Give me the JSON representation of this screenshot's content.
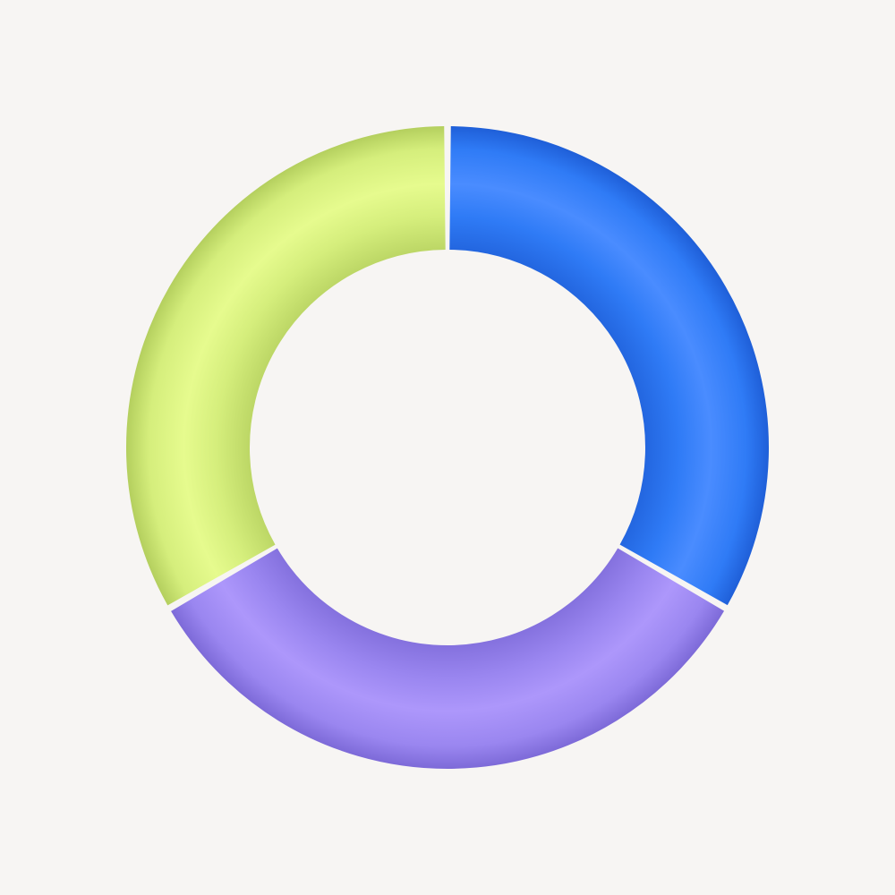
{
  "background": "#f7f5f3",
  "ring": {
    "segments": [
      {
        "id": "blue",
        "share": 0.3333,
        "color": "#2f7bf6",
        "highlight": "#4a8cff",
        "shadow": "#1f5fd8"
      },
      {
        "id": "purple",
        "share": 0.3333,
        "color": "#9a86f0",
        "highlight": "#ad97fb",
        "shadow": "#7d6ad8"
      },
      {
        "id": "green",
        "share": 0.3334,
        "color": "#d5ee7c",
        "highlight": "#e6fb8e",
        "shadow": "#b4cf5e"
      }
    ]
  }
}
